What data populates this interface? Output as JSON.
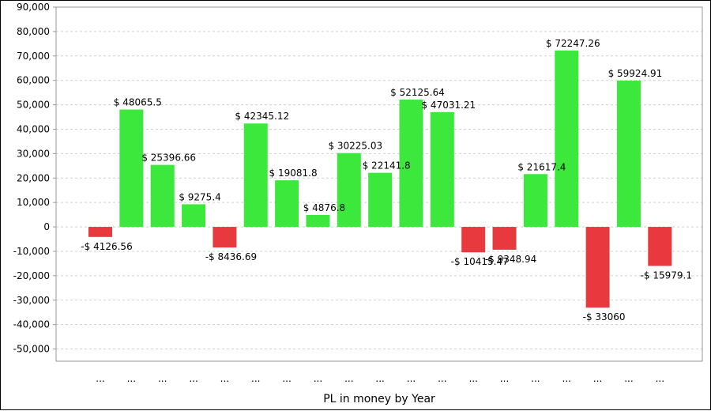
{
  "chart_data": {
    "type": "bar",
    "xlabel": "PL in money by Year",
    "ylabel": "",
    "ylim": [
      -55000,
      90000
    ],
    "yticks": [
      90000,
      80000,
      70000,
      60000,
      50000,
      40000,
      30000,
      20000,
      10000,
      0,
      -10000,
      -20000,
      -30000,
      -40000,
      -50000
    ],
    "ytick_labels": [
      "90,000",
      "80,000",
      "70,000",
      "60,000",
      "50,000",
      "40,000",
      "30,000",
      "20,000",
      "10,000",
      "0",
      "-10,000",
      "-20,000",
      "-30,000",
      "-40,000",
      "-50,000"
    ],
    "grid": true,
    "legend": "none",
    "categories": [
      "...",
      "...",
      "...",
      "...",
      "...",
      "...",
      "...",
      "...",
      "...",
      "...",
      "...",
      "...",
      "...",
      "...",
      "...",
      "...",
      "...",
      "...",
      "..."
    ],
    "values": [
      -4126.56,
      48065.5,
      25396.66,
      9275.4,
      -8436.69,
      42345.12,
      19081.8,
      4876.8,
      30225.03,
      22141.8,
      52125.64,
      47031.21,
      -10415.47,
      -9348.94,
      21617.4,
      72247.26,
      -33060,
      59924.91,
      -15979.1
    ],
    "data_labels": [
      "-$ 4126.56",
      "$ 48065.5",
      "$ 25396.66",
      "$ 9275.4",
      "-$ 8436.69",
      "$ 42345.12",
      "$ 19081.8",
      "$ 4876.8",
      "$ 30225.03",
      "$ 22141.8",
      "$ 52125.64",
      "$ 47031.21",
      "-$ 10415.47",
      "-$ 9348.94",
      "$ 21617.4",
      "$ 72247.26",
      "-$ 33060",
      "$ 59924.91",
      "-$ 15979.1"
    ],
    "colors": {
      "positive": "#3de83d",
      "negative": "#e8393f",
      "grid": "#d0d0d0",
      "axis": "#999999"
    }
  }
}
